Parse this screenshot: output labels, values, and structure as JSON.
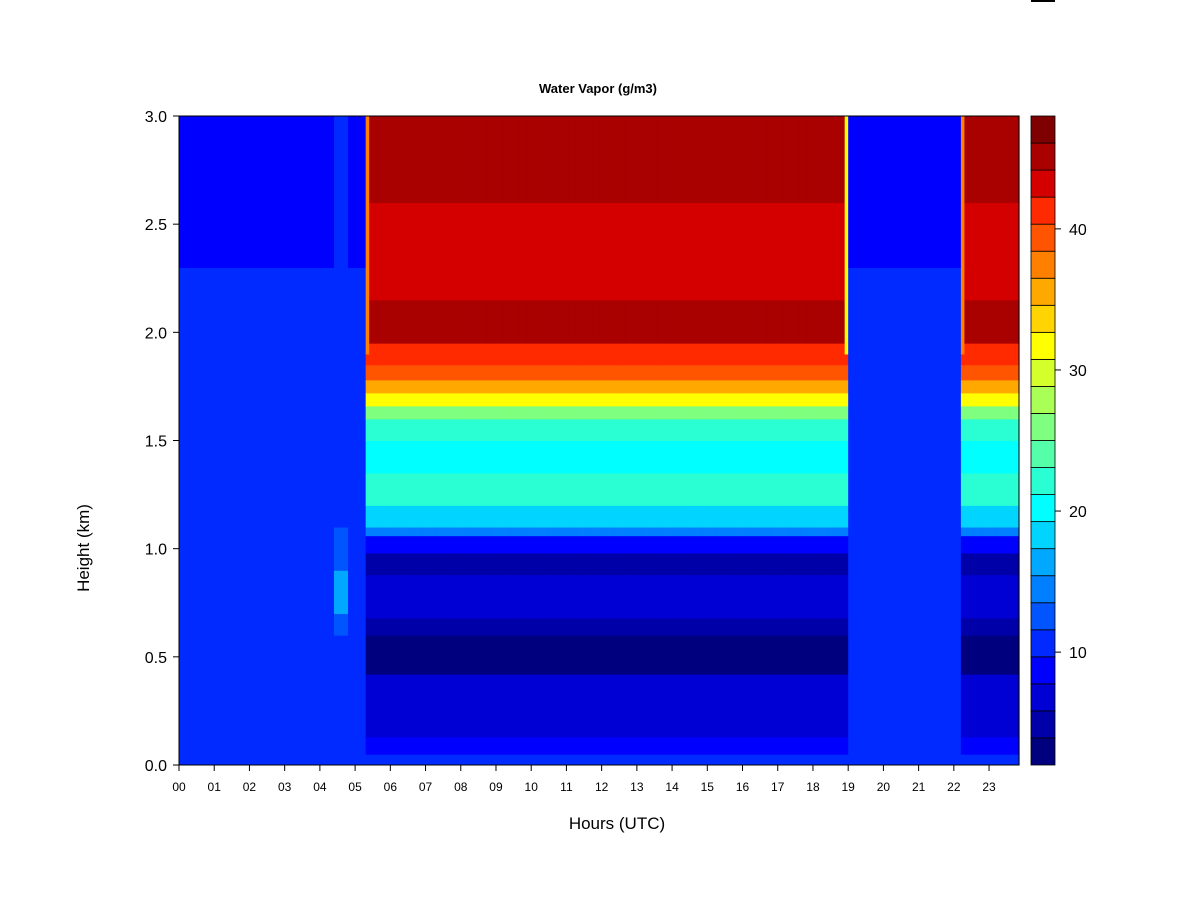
{
  "chart_data": {
    "type": "heatmap",
    "title": "Water Vapor (g/m3)",
    "xlabel": "Hours (UTC)",
    "ylabel": "Height (km)",
    "x_ticks": [
      "00",
      "01",
      "02",
      "03",
      "04",
      "05",
      "06",
      "07",
      "08",
      "09",
      "10",
      "11",
      "12",
      "13",
      "14",
      "15",
      "16",
      "17",
      "18",
      "19",
      "20",
      "21",
      "22",
      "23"
    ],
    "xlim": [
      0,
      23.85
    ],
    "y_ticks": [
      "0.0",
      "0.5",
      "1.0",
      "1.5",
      "2.0",
      "2.5",
      "3.0"
    ],
    "ylim": [
      0,
      3.0
    ],
    "colorbar": {
      "range": [
        2,
        48
      ],
      "levels": 23,
      "ticks": [
        "10",
        "20",
        "30",
        "40"
      ],
      "colors": [
        "#00007f",
        "#0000a9",
        "#0000d4",
        "#0000ff",
        "#002aff",
        "#0055ff",
        "#007fff",
        "#00a9ff",
        "#00d4ff",
        "#00ffff",
        "#2affd4",
        "#55ffa9",
        "#7fff7f",
        "#a9ff55",
        "#d4ff2a",
        "#ffff00",
        "#ffd400",
        "#ffa900",
        "#ff7f00",
        "#ff5500",
        "#ff2a00",
        "#d40000",
        "#a90000",
        "#7f0000"
      ]
    },
    "regimes": [
      {
        "from_hour": 0.0,
        "to_hour": 5.3,
        "description_value": "low (about 5-10) throughout column"
      },
      {
        "from_hour": 5.3,
        "to_hour": 19.0,
        "description_value": "below 1.0 km about 2-8; 1.1-1.6 km about 18-24; above 1.8 km about 40-46"
      },
      {
        "from_hour": 19.0,
        "to_hour": 22.2,
        "description_value": "low (about 5-10) throughout column"
      },
      {
        "from_hour": 22.2,
        "to_hour": 23.85,
        "description_value": "layered profile like 05-19 period"
      }
    ]
  }
}
